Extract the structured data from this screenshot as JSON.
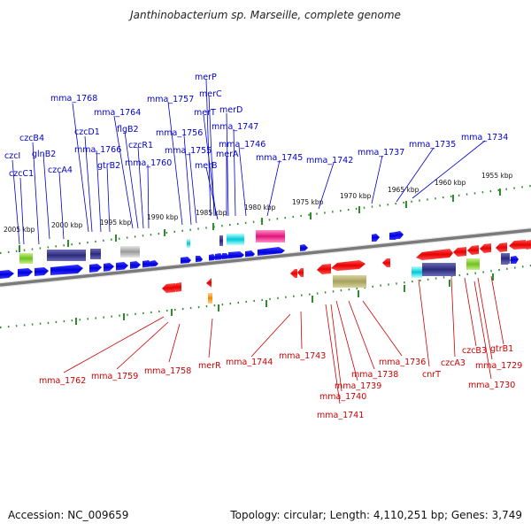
{
  "title": "Janthinobacterium sp. Marseille, complete genome",
  "footer": {
    "accession": "Accession: NC_009659",
    "summary": "Topology: circular; Length: 4,110,251 bp; Genes: 3,749"
  },
  "ticks": [
    "2005 kbp",
    "2000 kbp",
    "1995 kbp",
    "1990 kbp",
    "1985 kbp",
    "1980 kbp",
    "1975 kbp",
    "1970 kbp",
    "1965 kbp",
    "1960 kbp",
    "1955 kbp"
  ],
  "top_genes": [
    "czcI",
    "czcC1",
    "czcB4",
    "glnB2",
    "czcA4",
    "mma_1768",
    "czcD1",
    "mma_1766",
    "mma_1764",
    "gtrB2",
    "flgB2",
    "czcR1",
    "mma_1760",
    "mma_1757",
    "mma_1756",
    "mma_1755",
    "merP",
    "merC",
    "merT",
    "merB",
    "merD",
    "mma_1747",
    "merA",
    "mma_1746",
    "mma_1745",
    "mma_1742",
    "mma_1737",
    "mma_1735",
    "mma_1734"
  ],
  "bottom_genes": [
    "mma_1762",
    "mma_1759",
    "mma_1758",
    "merR",
    "mma_1744",
    "mma_1743",
    "mma_1741",
    "mma_1740",
    "mma_1739",
    "mma_1738",
    "mma_1736",
    "cnrT",
    "czcA3",
    "czcB3",
    "mma_1729",
    "gtrB1",
    "mma_1730"
  ],
  "colors": {
    "forward": "#0000ff",
    "reverse": "#ff0000",
    "backbone": "#7a7a7a",
    "tick": "#228b22"
  }
}
